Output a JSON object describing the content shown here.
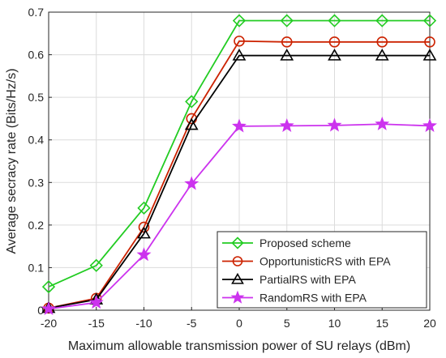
{
  "chart_data": {
    "type": "line",
    "xlabel": "Maximum allowable transmission power of SU relays (dBm)",
    "ylabel": "Average secracy rate (Bits/Hz/s)",
    "xlim": [
      -20,
      20
    ],
    "ylim": [
      0,
      0.7
    ],
    "x_ticks": [
      "-20",
      "-15",
      "-10",
      "-5",
      "0",
      "5",
      "10",
      "15",
      "20"
    ],
    "y_ticks": [
      "0",
      "0.1",
      "0.2",
      "0.3",
      "0.4",
      "0.5",
      "0.6",
      "0.7"
    ],
    "x_tick_values": [
      -20,
      -15,
      -10,
      -5,
      0,
      5,
      10,
      15,
      20
    ],
    "y_tick_values": [
      0,
      0.1,
      0.2,
      0.3,
      0.4,
      0.5,
      0.6,
      0.7
    ],
    "grid": true,
    "legend_position": "bottom-right",
    "x": [
      -20,
      -15,
      -10,
      -5,
      0,
      5,
      10,
      15,
      20
    ],
    "series": [
      {
        "name": "Proposed scheme",
        "color": "#22cc22",
        "marker": "diamond",
        "values": [
          0.055,
          0.105,
          0.24,
          0.49,
          0.68,
          0.68,
          0.68,
          0.68,
          0.68
        ]
      },
      {
        "name": "OpportunisticRS with EPA",
        "color": "#cc2200",
        "marker": "circle",
        "values": [
          0.005,
          0.028,
          0.195,
          0.45,
          0.632,
          0.63,
          0.63,
          0.63,
          0.63
        ]
      },
      {
        "name": "PartialRS with EPA",
        "color": "#000000",
        "marker": "triangle",
        "values": [
          0.005,
          0.025,
          0.18,
          0.435,
          0.598,
          0.598,
          0.598,
          0.598,
          0.598
        ]
      },
      {
        "name": "RandomRS with EPA",
        "color": "#cc33ee",
        "marker": "star",
        "values": [
          0.003,
          0.018,
          0.13,
          0.297,
          0.432,
          0.433,
          0.434,
          0.437,
          0.433
        ]
      }
    ]
  }
}
